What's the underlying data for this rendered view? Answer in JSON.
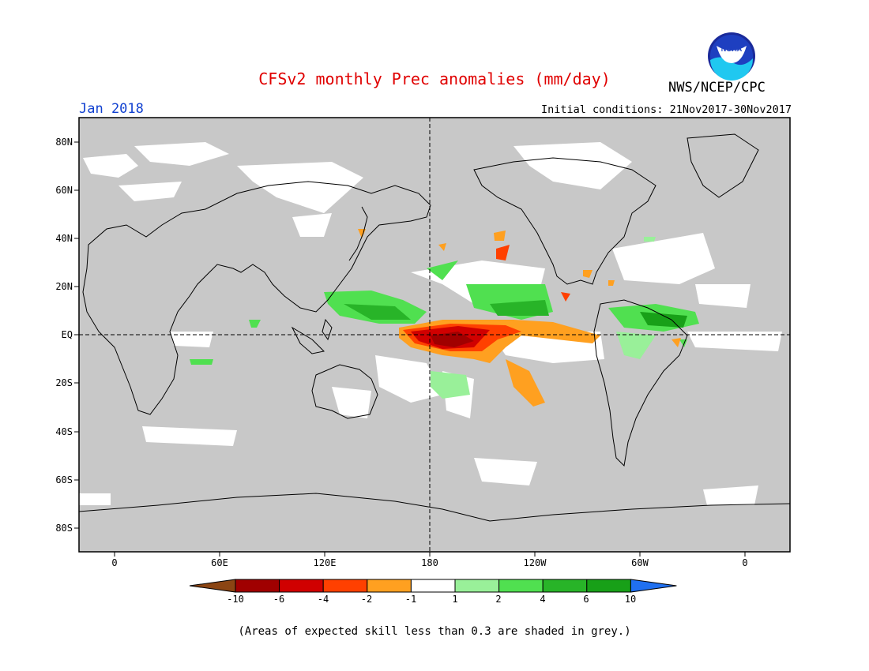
{
  "header": {
    "title": "CFSv2 monthly Prec anomalies (mm/day)",
    "month": "Jan 2018",
    "initial_conditions": "Initial conditions: 21Nov2017-30Nov2017",
    "agency": "NWS/NCEP/CPC",
    "logo_text": "NOAA"
  },
  "map": {
    "lat_labels": [
      "80N",
      "60N",
      "40N",
      "20N",
      "EQ",
      "20S",
      "40S",
      "60S",
      "80S"
    ],
    "lon_labels": [
      "0",
      "60E",
      "120E",
      "180",
      "120W",
      "60W",
      "0"
    ],
    "grey_meaning": "Areas of expected skill less than 0.3"
  },
  "colorbar": {
    "labels": [
      "-10",
      "-6",
      "-4",
      "-2",
      "-1",
      "1",
      "2",
      "4",
      "6",
      "10"
    ],
    "colors": [
      "#8b4513",
      "#a00000",
      "#d00000",
      "#ff4000",
      "#ffa020",
      "#ffffff",
      "#99f099",
      "#50e050",
      "#28b428",
      "#18a018",
      "#2070f0"
    ]
  },
  "footnote": "(Areas of expected skill less than 0.3 are shaded in grey.)",
  "colors": {
    "title": "#e00000",
    "month": "#1040d0",
    "grey_mask": "#c8c8c8"
  }
}
